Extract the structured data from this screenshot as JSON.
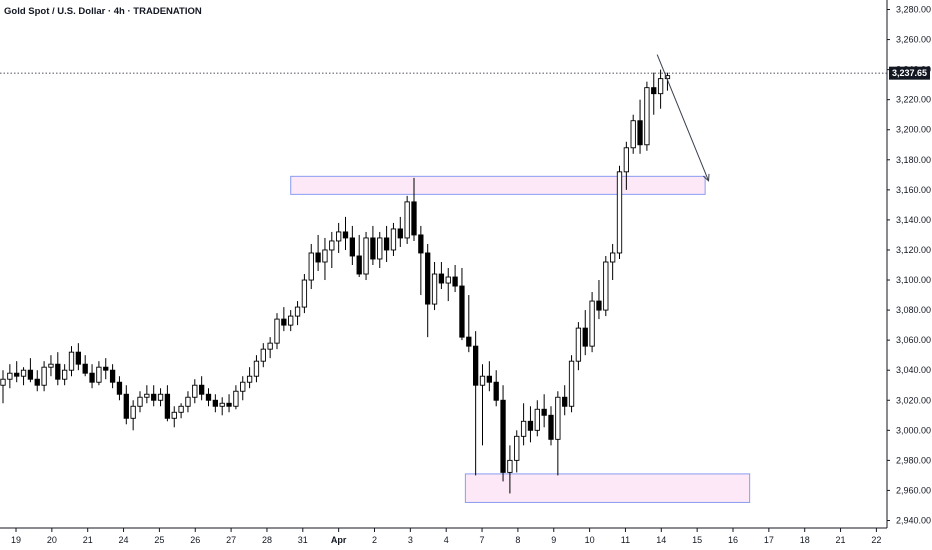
{
  "header": {
    "title": "Gold Spot / U.S. Dollar · 4h · TRADENATION"
  },
  "price_label": "3,237.65",
  "colors": {
    "up_body": "#ffffff",
    "down_body": "#000000",
    "candle_outline": "#000000",
    "zone_fill": "#fce8f6",
    "zone_stroke": "#8a9cf2",
    "arrow": "#3a3f4e",
    "price_tag": "#131722",
    "axis_line": "#131722"
  },
  "chart_data": {
    "type": "candlestick",
    "ylim": [
      2935,
      3285
    ],
    "y_ticks": [
      {
        "value": 2940,
        "label": "2,940.00"
      },
      {
        "value": 2960,
        "label": "2,960.00"
      },
      {
        "value": 2980,
        "label": "2,980.00"
      },
      {
        "value": 3000,
        "label": "3,000.00"
      },
      {
        "value": 3020,
        "label": "3,020.00"
      },
      {
        "value": 3040,
        "label": "3,040.00"
      },
      {
        "value": 3060,
        "label": "3,060.00"
      },
      {
        "value": 3080,
        "label": "3,080.00"
      },
      {
        "value": 3100,
        "label": "3,100.00"
      },
      {
        "value": 3120,
        "label": "3,120.00"
      },
      {
        "value": 3140,
        "label": "3,140.00"
      },
      {
        "value": 3160,
        "label": "3,160.00"
      },
      {
        "value": 3180,
        "label": "3,180.00"
      },
      {
        "value": 3200,
        "label": "3,200.00"
      },
      {
        "value": 3220,
        "label": "3,220.00"
      },
      {
        "value": 3240,
        "label": "3,240.00"
      },
      {
        "value": 3260,
        "label": "3,260.00"
      },
      {
        "value": 3280,
        "label": "3,280.00"
      }
    ],
    "x_ticks": [
      {
        "label": "19",
        "day": 19,
        "bold": false
      },
      {
        "label": "20",
        "day": 20,
        "bold": false
      },
      {
        "label": "21",
        "day": 21,
        "bold": false
      },
      {
        "label": "24",
        "day": 24,
        "bold": false
      },
      {
        "label": "25",
        "day": 25,
        "bold": false
      },
      {
        "label": "26",
        "day": 26,
        "bold": false
      },
      {
        "label": "27",
        "day": 27,
        "bold": false
      },
      {
        "label": "28",
        "day": 28,
        "bold": false
      },
      {
        "label": "31",
        "day": 31,
        "bold": false
      },
      {
        "label": "Apr",
        "day": 32,
        "bold": true
      },
      {
        "label": "2",
        "day": 33,
        "bold": false
      },
      {
        "label": "3",
        "day": 34,
        "bold": false
      },
      {
        "label": "4",
        "day": 35,
        "bold": false
      },
      {
        "label": "7",
        "day": 36,
        "bold": false
      },
      {
        "label": "8",
        "day": 37,
        "bold": false
      },
      {
        "label": "9",
        "day": 38,
        "bold": false
      },
      {
        "label": "10",
        "day": 39,
        "bold": false
      },
      {
        "label": "11",
        "day": 40,
        "bold": false
      },
      {
        "label": "14",
        "day": 41,
        "bold": false
      },
      {
        "label": "15",
        "day": 42,
        "bold": false
      },
      {
        "label": "16",
        "day": 43,
        "bold": false
      },
      {
        "label": "17",
        "day": 44,
        "bold": false
      },
      {
        "label": "18",
        "day": 45,
        "bold": false
      },
      {
        "label": "21",
        "day": 46,
        "bold": false
      },
      {
        "label": "22",
        "day": 47,
        "bold": false
      }
    ],
    "day_start_index": 18.5,
    "candles": [
      [
        3030,
        3040,
        3018,
        3034
      ],
      [
        3034,
        3044,
        3028,
        3038
      ],
      [
        3038,
        3046,
        3032,
        3036
      ],
      [
        3036,
        3042,
        3030,
        3040
      ],
      [
        3040,
        3048,
        3032,
        3034
      ],
      [
        3034,
        3040,
        3026,
        3030
      ],
      [
        3030,
        3046,
        3026,
        3042
      ],
      [
        3042,
        3050,
        3036,
        3044
      ],
      [
        3044,
        3052,
        3030,
        3034
      ],
      [
        3034,
        3044,
        3030,
        3040
      ],
      [
        3040,
        3056,
        3036,
        3052
      ],
      [
        3052,
        3058,
        3040,
        3044
      ],
      [
        3044,
        3050,
        3036,
        3038
      ],
      [
        3038,
        3044,
        3028,
        3032
      ],
      [
        3032,
        3046,
        3030,
        3042
      ],
      [
        3042,
        3048,
        3034,
        3040
      ],
      [
        3040,
        3044,
        3028,
        3032
      ],
      [
        3032,
        3036,
        3020,
        3024
      ],
      [
        3024,
        3030,
        3004,
        3008
      ],
      [
        3008,
        3020,
        3000,
        3016
      ],
      [
        3016,
        3026,
        3012,
        3022
      ],
      [
        3022,
        3030,
        3018,
        3024
      ],
      [
        3024,
        3030,
        3016,
        3020
      ],
      [
        3020,
        3028,
        3016,
        3024
      ],
      [
        3024,
        3030,
        3006,
        3008
      ],
      [
        3008,
        3016,
        3002,
        3012
      ],
      [
        3012,
        3018,
        3008,
        3016
      ],
      [
        3016,
        3026,
        3012,
        3022
      ],
      [
        3022,
        3034,
        3018,
        3030
      ],
      [
        3030,
        3036,
        3020,
        3024
      ],
      [
        3024,
        3028,
        3016,
        3020
      ],
      [
        3020,
        3024,
        3012,
        3016
      ],
      [
        3016,
        3022,
        3010,
        3018
      ],
      [
        3018,
        3024,
        3012,
        3016
      ],
      [
        3016,
        3030,
        3014,
        3026
      ],
      [
        3026,
        3036,
        3020,
        3032
      ],
      [
        3032,
        3042,
        3028,
        3036
      ],
      [
        3036,
        3050,
        3032,
        3046
      ],
      [
        3046,
        3058,
        3042,
        3054
      ],
      [
        3054,
        3062,
        3048,
        3058
      ],
      [
        3058,
        3078,
        3054,
        3074
      ],
      [
        3074,
        3082,
        3066,
        3070
      ],
      [
        3070,
        3080,
        3066,
        3076
      ],
      [
        3076,
        3086,
        3070,
        3082
      ],
      [
        3082,
        3104,
        3078,
        3100
      ],
      [
        3100,
        3124,
        3094,
        3118
      ],
      [
        3118,
        3130,
        3106,
        3112
      ],
      [
        3112,
        3128,
        3100,
        3120
      ],
      [
        3120,
        3132,
        3108,
        3126
      ],
      [
        3126,
        3138,
        3118,
        3132
      ],
      [
        3132,
        3142,
        3120,
        3128
      ],
      [
        3128,
        3136,
        3110,
        3116
      ],
      [
        3116,
        3130,
        3102,
        3104
      ],
      [
        3104,
        3132,
        3100,
        3128
      ],
      [
        3128,
        3136,
        3110,
        3114
      ],
      [
        3114,
        3132,
        3108,
        3128
      ],
      [
        3128,
        3136,
        3112,
        3120
      ],
      [
        3120,
        3138,
        3116,
        3134
      ],
      [
        3134,
        3142,
        3122,
        3128
      ],
      [
        3128,
        3156,
        3124,
        3152
      ],
      [
        3152,
        3168,
        3126,
        3130
      ],
      [
        3130,
        3136,
        3090,
        3118
      ],
      [
        3118,
        3124,
        3062,
        3084
      ],
      [
        3084,
        3112,
        3080,
        3104
      ],
      [
        3104,
        3112,
        3094,
        3098
      ],
      [
        3098,
        3108,
        3086,
        3102
      ],
      [
        3102,
        3110,
        3092,
        3096
      ],
      [
        3096,
        3108,
        3060,
        3062
      ],
      [
        3062,
        3090,
        3052,
        3056
      ],
      [
        3056,
        3066,
        2970,
        3030
      ],
      [
        3030,
        3044,
        2990,
        3036
      ],
      [
        3036,
        3046,
        3026,
        3032
      ],
      [
        3032,
        3040,
        3016,
        3020
      ],
      [
        3020,
        3030,
        2966,
        2972
      ],
      [
        2972,
        2990,
        2958,
        2980
      ],
      [
        2980,
        3000,
        2972,
        2996
      ],
      [
        2996,
        3018,
        2990,
        3006
      ],
      [
        3006,
        3016,
        2992,
        3000
      ],
      [
        3000,
        3020,
        2996,
        3014
      ],
      [
        3014,
        3024,
        3002,
        3010
      ],
      [
        3010,
        3016,
        2990,
        2994
      ],
      [
        2994,
        3026,
        2970,
        3022
      ],
      [
        3022,
        3030,
        3010,
        3016
      ],
      [
        3016,
        3050,
        3012,
        3046
      ],
      [
        3046,
        3072,
        3040,
        3068
      ],
      [
        3068,
        3080,
        3050,
        3056
      ],
      [
        3056,
        3092,
        3052,
        3086
      ],
      [
        3086,
        3100,
        3074,
        3080
      ],
      [
        3080,
        3116,
        3076,
        3112
      ],
      [
        3112,
        3124,
        3100,
        3118
      ],
      [
        3118,
        3176,
        3114,
        3172
      ],
      [
        3172,
        3192,
        3160,
        3188
      ],
      [
        3188,
        3210,
        3184,
        3206
      ],
      [
        3206,
        3220,
        3184,
        3190
      ],
      [
        3190,
        3232,
        3186,
        3228
      ],
      [
        3228,
        3238,
        3210,
        3224
      ],
      [
        3224,
        3240,
        3214,
        3234
      ],
      [
        3234,
        3238,
        3226,
        3236
      ]
    ],
    "zones": [
      {
        "x_start_index": 42,
        "x_end_index": 102.5,
        "y_low": 3157,
        "y_high": 3169
      },
      {
        "x_start_index": 67.5,
        "x_end_index": 109,
        "y_low": 2952,
        "y_high": 2971
      }
    ],
    "arrow": {
      "from": {
        "index": 95.5,
        "value": 3250
      },
      "to": {
        "index": 103,
        "value": 3166
      }
    },
    "last_price": 3237.65
  }
}
